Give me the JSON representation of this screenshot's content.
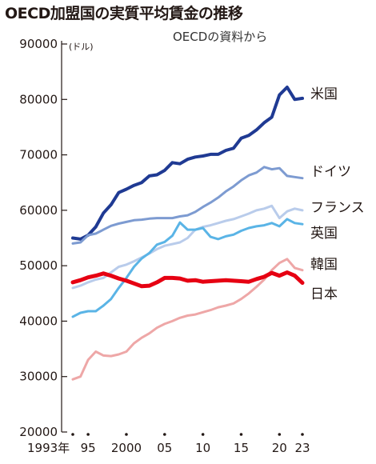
{
  "title": "OECD加盟国の実質平均賃金の推移",
  "source": "OECDの資料から",
  "chart_data": {
    "type": "line",
    "title": "OECD加盟国の実質平均賃金の推移",
    "unit": "(ドル)",
    "ylim": [
      20000,
      90000
    ],
    "yticks": [
      20000,
      30000,
      40000,
      50000,
      60000,
      70000,
      80000,
      90000
    ],
    "ytick_labels": [
      "20000",
      "30000",
      "40000",
      "50000",
      "60000",
      "70000",
      "80000",
      "90000"
    ],
    "xlim": [
      1993,
      2023
    ],
    "xticks": [
      1993,
      1995,
      2000,
      2005,
      2010,
      2015,
      2020,
      2023
    ],
    "xtick_labels": [
      "1993年",
      "95",
      "2000",
      "05",
      "10",
      "15",
      "20",
      "23"
    ],
    "x": [
      1993,
      1994,
      1995,
      1996,
      1997,
      1998,
      1999,
      2000,
      2001,
      2002,
      2003,
      2004,
      2005,
      2006,
      2007,
      2008,
      2009,
      2010,
      2011,
      2012,
      2013,
      2014,
      2015,
      2016,
      2017,
      2018,
      2019,
      2020,
      2021,
      2022,
      2023
    ],
    "series": [
      {
        "name": "米国",
        "color": "#1f3a93",
        "width": 4,
        "values": [
          55000,
          54800,
          55500,
          57000,
          59500,
          61000,
          63200,
          63800,
          64500,
          65000,
          66200,
          66400,
          67200,
          68600,
          68400,
          69200,
          69600,
          69800,
          70100,
          70100,
          70800,
          71200,
          73000,
          73500,
          74500,
          75800,
          76800,
          80800,
          82200,
          80000,
          80200
        ]
      },
      {
        "name": "ドイツ",
        "color": "#7d9bd1",
        "width": 3,
        "values": [
          54000,
          54200,
          55500,
          55800,
          56500,
          57200,
          57600,
          57900,
          58200,
          58300,
          58500,
          58600,
          58600,
          58600,
          58900,
          59100,
          59700,
          60600,
          61400,
          62300,
          63400,
          64300,
          65400,
          66300,
          66800,
          67800,
          67400,
          67600,
          66200,
          66000,
          65800
        ]
      },
      {
        "name": "フランス",
        "color": "#b9cceb",
        "width": 3,
        "values": [
          46000,
          46400,
          47000,
          47500,
          47800,
          48800,
          49800,
          50200,
          50800,
          51500,
          52200,
          53000,
          53600,
          53900,
          54200,
          55000,
          56500,
          57000,
          57300,
          57700,
          58100,
          58400,
          58900,
          59400,
          60000,
          60300,
          60800,
          58600,
          59800,
          60300,
          60000
        ]
      },
      {
        "name": "英国",
        "color": "#5ab4e6",
        "width": 3,
        "values": [
          40800,
          41500,
          41800,
          41800,
          42800,
          44000,
          46000,
          47800,
          49800,
          51300,
          52300,
          53800,
          54300,
          55400,
          57800,
          56500,
          56500,
          56800,
          55200,
          54800,
          55300,
          55600,
          56300,
          56800,
          57100,
          57300,
          57700,
          57100,
          58400,
          57700,
          57500
        ]
      },
      {
        "name": "韓国",
        "color": "#eea7a7",
        "width": 3,
        "values": [
          29500,
          30000,
          33000,
          34500,
          33800,
          33700,
          34000,
          34500,
          36000,
          37000,
          37800,
          38800,
          39500,
          40000,
          40600,
          41000,
          41200,
          41600,
          42000,
          42500,
          42800,
          43200,
          44000,
          45000,
          46200,
          47500,
          49200,
          50500,
          51200,
          49600,
          49200
        ]
      },
      {
        "name": "日本",
        "color": "#e60012",
        "width": 5,
        "values": [
          47000,
          47400,
          47900,
          48200,
          48600,
          48200,
          47700,
          47300,
          46800,
          46300,
          46400,
          47000,
          47800,
          47800,
          47700,
          47300,
          47400,
          47100,
          47200,
          47300,
          47400,
          47300,
          47200,
          47100,
          47600,
          48000,
          48700,
          48200,
          48800,
          48200,
          46900
        ]
      }
    ],
    "series_labels": [
      "米国",
      "ドイツ",
      "フランス",
      "英国",
      "韓国",
      "日本"
    ],
    "legend": "right (labels at line ends)",
    "grid": false
  }
}
